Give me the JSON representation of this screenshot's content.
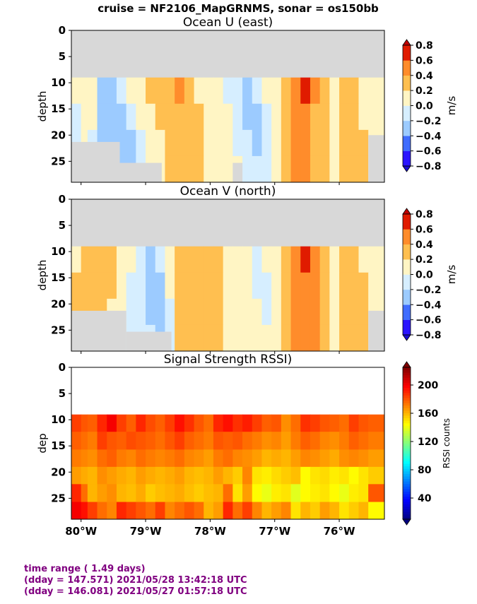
{
  "suptitle": "cruise = NF2106_MapGRNMS,  sonar = os150bb",
  "footer": {
    "line1": "time range ( 1.49 days)",
    "line2": "(dday = 147.571) 2021/05/28 13:42:18 UTC",
    "line3": "(dday = 146.081) 2021/05/27 01:57:18 UTC"
  },
  "colors": {
    "nodata": "#d8d8d8",
    "u_v_bins": [
      "#2a14ff",
      "#3f6cff",
      "#9ccbff",
      "#d6eeff",
      "#fff5c4",
      "#ffbf50",
      "#ff8c2b",
      "#e01b00"
    ],
    "u_v_extend": [
      "#1a0dd0",
      "#c00000"
    ],
    "rssi_cmap": [
      "#00007f",
      "#0000ff",
      "#007fff",
      "#00ffff",
      "#7fff7f",
      "#ffff00",
      "#ff7f00",
      "#ff0000",
      "#7f0000"
    ]
  },
  "chart_data": [
    {
      "type": "heatmap",
      "title": "Ocean U (east)",
      "xlabel": "",
      "ylabel": "depth",
      "xlim": [
        -80.15,
        -75.3
      ],
      "ylim": [
        29,
        0
      ],
      "xticks": [
        -80,
        -79,
        -78,
        -77,
        -76
      ],
      "xticklabels": [
        "80°W",
        "79°W",
        "78°W",
        "77°W",
        "76°W"
      ],
      "yticks": [
        0,
        5,
        10,
        15,
        20,
        25
      ],
      "yticklabels": [
        "0",
        "5",
        "10",
        "15",
        "20",
        "25"
      ],
      "colorbar": {
        "label": "m/s",
        "boundaries": [
          -0.8,
          -0.6,
          -0.4,
          -0.2,
          0.0,
          0.2,
          0.4,
          0.6,
          0.8
        ],
        "ticklabels": [
          "0.8",
          "0.6",
          "0.4",
          "0.2",
          "0.0",
          "−0.2",
          "−0.4",
          "−0.6",
          "−0.8"
        ]
      },
      "no_data_depth_top": 9,
      "no_data_bottom": [
        {
          "x0": -80.15,
          "x1": -79.4,
          "depth": 21.3
        },
        {
          "x0": -79.4,
          "x1": -78.75,
          "depth": 25.3
        },
        {
          "x0": -77.65,
          "x1": -77.5,
          "depth": 25.3
        },
        {
          "x0": -75.55,
          "x1": -75.3,
          "depth": 20.0
        }
      ],
      "x_edges": [
        -80.15,
        -80.0,
        -79.9,
        -79.75,
        -79.6,
        -79.45,
        -79.3,
        -79.15,
        -79.0,
        -78.85,
        -78.7,
        -78.55,
        -78.4,
        -78.25,
        -78.1,
        -77.95,
        -77.8,
        -77.65,
        -77.5,
        -77.35,
        -77.2,
        -77.05,
        -76.9,
        -76.75,
        -76.6,
        -76.45,
        -76.3,
        -76.15,
        -76.0,
        -75.85,
        -75.7,
        -75.55,
        -75.3
      ],
      "depth_edges": [
        9,
        14,
        19,
        24,
        29
      ],
      "values": [
        [
          0.05,
          0.15,
          0.0,
          -0.25,
          -0.3,
          -0.1,
          0.0,
          0.1,
          0.3,
          0.35,
          0.25,
          0.5,
          0.25,
          0.1,
          0.0,
          0.1,
          -0.1,
          -0.1,
          -0.3,
          -0.05,
          0.05,
          0.1,
          0.25,
          0.45,
          0.7,
          0.5,
          0.3,
          0.1,
          0.25,
          0.2,
          0.15,
          0.0
        ],
        [
          -0.1,
          0.05,
          0.0,
          -0.3,
          -0.3,
          -0.3,
          -0.1,
          0.0,
          0.1,
          0.3,
          0.3,
          0.25,
          0.3,
          0.25,
          0.1,
          0.0,
          0.1,
          -0.05,
          -0.3,
          -0.3,
          -0.1,
          0.05,
          0.3,
          0.45,
          0.5,
          0.3,
          0.3,
          0.1,
          0.25,
          0.3,
          0.15,
          0.0
        ],
        [
          -0.05,
          0.0,
          -0.05,
          -0.3,
          -0.3,
          -0.3,
          -0.3,
          -0.1,
          0.05,
          0.1,
          0.3,
          0.25,
          0.3,
          0.25,
          0.1,
          0.05,
          0.1,
          -0.05,
          -0.1,
          -0.3,
          -0.1,
          0.05,
          0.3,
          0.45,
          0.5,
          0.3,
          0.3,
          0.1,
          0.25,
          0.3,
          0.3,
          0.0
        ],
        [
          0.0,
          0.0,
          0.0,
          0.0,
          0.0,
          -0.3,
          -0.3,
          -0.1,
          0.05,
          0.1,
          0.3,
          0.25,
          0.3,
          0.25,
          0.1,
          0.05,
          0.1,
          0.0,
          -0.05,
          -0.1,
          -0.05,
          0.05,
          0.3,
          0.45,
          0.5,
          0.3,
          0.3,
          0.1,
          0.25,
          0.3,
          0.3,
          0.0
        ]
      ]
    },
    {
      "type": "heatmap",
      "title": "Ocean V (north)",
      "xlabel": "",
      "ylabel": "depth",
      "xlim": [
        -80.15,
        -75.3
      ],
      "ylim": [
        29,
        0
      ],
      "xticks": [
        -80,
        -79,
        -78,
        -77,
        -76
      ],
      "xticklabels": [
        "80°W",
        "79°W",
        "78°W",
        "77°W",
        "76°W"
      ],
      "yticks": [
        0,
        5,
        10,
        15,
        20,
        25
      ],
      "yticklabels": [
        "0",
        "5",
        "10",
        "15",
        "20",
        "25"
      ],
      "colorbar": {
        "label": "m/s",
        "boundaries": [
          -0.8,
          -0.6,
          -0.4,
          -0.2,
          0.0,
          0.2,
          0.4,
          0.6,
          0.8
        ],
        "ticklabels": [
          "0.8",
          "0.6",
          "0.4",
          "0.2",
          "0.0",
          "−0.2",
          "−0.4",
          "−0.6",
          "−0.8"
        ]
      },
      "no_data_depth_top": 9,
      "no_data_bottom": [
        {
          "x0": -80.15,
          "x1": -79.3,
          "depth": 21.3
        },
        {
          "x0": -79.3,
          "x1": -78.6,
          "depth": 25.3
        },
        {
          "x0": -75.55,
          "x1": -75.3,
          "depth": 21.3
        }
      ],
      "x_edges": [
        -80.15,
        -80.0,
        -79.9,
        -79.75,
        -79.6,
        -79.45,
        -79.3,
        -79.15,
        -79.0,
        -78.85,
        -78.7,
        -78.55,
        -78.4,
        -78.25,
        -78.1,
        -77.95,
        -77.8,
        -77.65,
        -77.5,
        -77.35,
        -77.2,
        -77.05,
        -76.9,
        -76.75,
        -76.6,
        -76.45,
        -76.3,
        -76.15,
        -76.0,
        -75.85,
        -75.7,
        -75.55,
        -75.3
      ],
      "depth_edges": [
        9,
        14,
        19,
        24,
        29
      ],
      "values": [
        [
          0.1,
          0.3,
          0.3,
          0.3,
          0.25,
          0.05,
          0.0,
          -0.1,
          -0.3,
          -0.1,
          0.05,
          0.3,
          0.3,
          0.3,
          0.3,
          0.3,
          0.1,
          0.05,
          0.0,
          -0.05,
          0.0,
          0.05,
          0.3,
          0.5,
          0.6,
          0.45,
          0.3,
          0.1,
          0.25,
          0.3,
          0.15,
          0.0
        ],
        [
          0.3,
          0.3,
          0.3,
          0.3,
          0.3,
          0.05,
          -0.05,
          -0.1,
          -0.3,
          -0.3,
          0.0,
          0.3,
          0.3,
          0.3,
          0.3,
          0.3,
          0.1,
          0.05,
          0.0,
          -0.05,
          -0.1,
          0.05,
          0.3,
          0.45,
          0.5,
          0.45,
          0.3,
          0.1,
          0.25,
          0.3,
          0.3,
          0.0
        ],
        [
          0.3,
          0.3,
          0.3,
          0.3,
          0.05,
          0.05,
          -0.05,
          -0.05,
          -0.3,
          -0.3,
          -0.05,
          0.3,
          0.3,
          0.3,
          0.3,
          0.3,
          0.1,
          0.05,
          0.0,
          0.0,
          -0.05,
          0.05,
          0.3,
          0.45,
          0.5,
          0.45,
          0.3,
          0.1,
          0.25,
          0.3,
          0.3,
          0.0
        ],
        [
          0.0,
          0.0,
          0.0,
          0.0,
          0.0,
          0.05,
          -0.05,
          -0.05,
          -0.1,
          -0.3,
          -0.05,
          0.3,
          0.3,
          0.3,
          0.3,
          0.3,
          0.1,
          0.05,
          0.05,
          0.05,
          0.05,
          0.05,
          0.3,
          0.45,
          0.45,
          0.45,
          0.3,
          0.1,
          0.25,
          0.3,
          0.3,
          0.0
        ]
      ]
    },
    {
      "type": "heatmap",
      "title": "Signal Strength RSSI)",
      "xlabel": "",
      "ylabel": "dep",
      "xlim": [
        -80.15,
        -75.3
      ],
      "ylim": [
        29,
        0
      ],
      "xticks": [
        -80,
        -79,
        -78,
        -77,
        -76
      ],
      "xticklabels": [
        "80°W",
        "79°W",
        "78°W",
        "77°W",
        "76°W"
      ],
      "yticks": [
        0,
        5,
        10,
        15,
        20,
        25
      ],
      "yticklabels": [
        "0",
        "5",
        "10",
        "15",
        "20",
        "25"
      ],
      "colorbar": {
        "label": "RSSI counts",
        "range": [
          10,
          225
        ],
        "ticks": [
          40,
          80,
          120,
          160,
          200
        ],
        "ticklabels": [
          "200",
          "160",
          "120",
          "80",
          "40"
        ]
      },
      "depth_edges": [
        9,
        12.3,
        15.7,
        19,
        22.3,
        25.7,
        29
      ],
      "x_edges": [
        -80.15,
        -80.0,
        -79.9,
        -79.75,
        -79.6,
        -79.45,
        -79.3,
        -79.15,
        -79.0,
        -78.85,
        -78.7,
        -78.55,
        -78.4,
        -78.25,
        -78.1,
        -77.95,
        -77.8,
        -77.65,
        -77.5,
        -77.35,
        -77.2,
        -77.05,
        -76.9,
        -76.75,
        -76.6,
        -76.45,
        -76.3,
        -76.15,
        -76.0,
        -75.85,
        -75.7,
        -75.55,
        -75.3
      ],
      "values": [
        [
          185,
          180,
          178,
          190,
          200,
          185,
          178,
          190,
          182,
          178,
          185,
          195,
          188,
          180,
          175,
          190,
          195,
          188,
          192,
          185,
          178,
          180,
          168,
          175,
          188,
          185,
          180,
          178,
          175,
          185,
          180,
          178
        ],
        [
          178,
          175,
          172,
          185,
          180,
          178,
          182,
          180,
          178,
          175,
          180,
          185,
          178,
          175,
          172,
          180,
          178,
          180,
          175,
          172,
          168,
          170,
          165,
          172,
          178,
          175,
          170,
          168,
          172,
          178,
          175,
          172
        ],
        [
          172,
          170,
          168,
          175,
          178,
          172,
          170,
          175,
          172,
          170,
          172,
          175,
          170,
          168,
          165,
          172,
          175,
          170,
          168,
          165,
          160,
          162,
          160,
          165,
          170,
          168,
          165,
          162,
          168,
          170,
          168,
          165
        ],
        [
          165,
          162,
          160,
          168,
          165,
          162,
          160,
          165,
          162,
          160,
          162,
          165,
          160,
          158,
          160,
          165,
          160,
          155,
          170,
          150,
          148,
          152,
          155,
          158,
          145,
          150,
          152,
          148,
          150,
          145,
          150,
          155
        ],
        [
          190,
          175,
          160,
          165,
          168,
          160,
          158,
          162,
          155,
          158,
          160,
          162,
          158,
          155,
          158,
          160,
          175,
          150,
          165,
          145,
          140,
          148,
          150,
          138,
          145,
          148,
          150,
          145,
          140,
          148,
          150,
          180
        ],
        [
          200,
          195,
          185,
          175,
          170,
          190,
          185,
          180,
          175,
          185,
          170,
          175,
          180,
          175,
          160,
          165,
          190,
          175,
          185,
          170,
          160,
          165,
          170,
          150,
          160,
          155,
          165,
          160,
          150,
          155,
          160,
          145
        ]
      ]
    }
  ]
}
